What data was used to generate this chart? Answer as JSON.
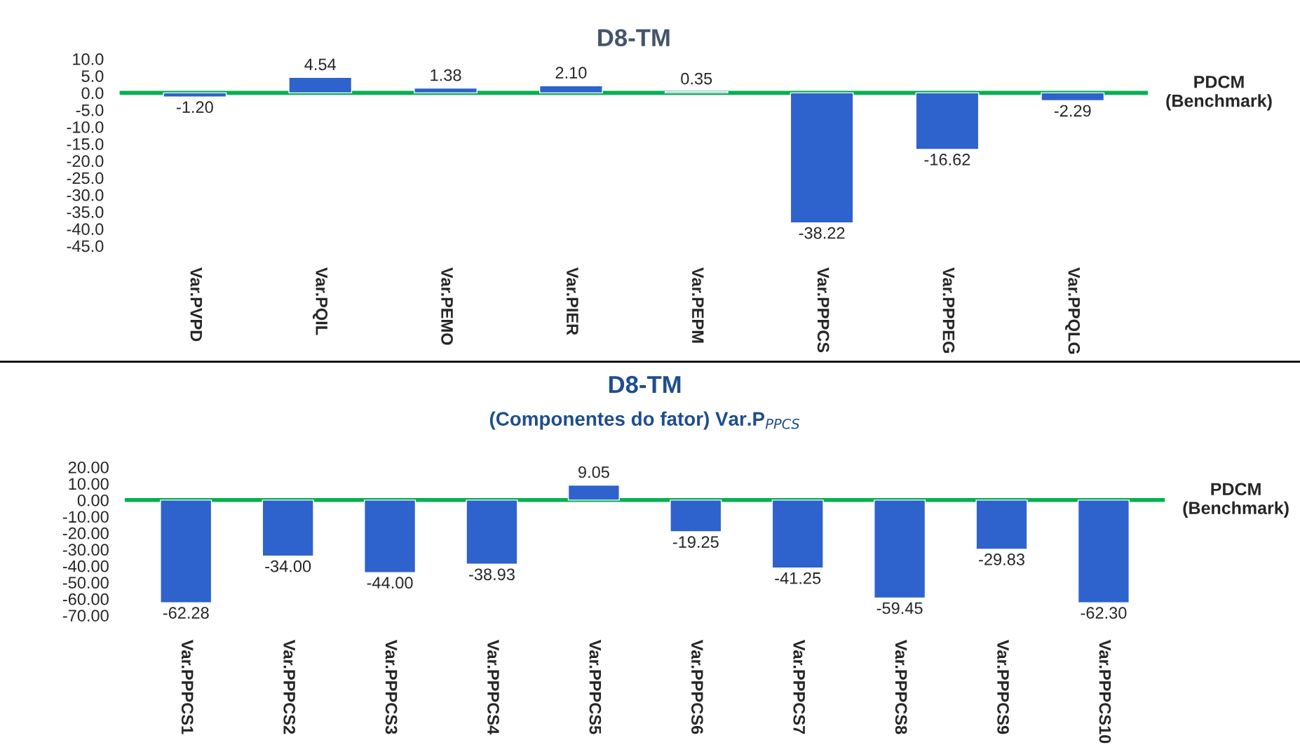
{
  "chart_data": [
    {
      "type": "bar",
      "title": "D8-TM",
      "categories": [
        "Var.PVPD",
        "Var.PQIL",
        "Var.PEMO",
        "Var.PIER",
        "Var.PEPM",
        "Var.PPPCS",
        "Var.PPPEG",
        "Var.PPQLG"
      ],
      "values": [
        -1.2,
        4.54,
        1.38,
        2.1,
        0.35,
        -38.22,
        -16.62,
        -2.29
      ],
      "value_labels": [
        "-1.20",
        "4.54",
        "1.38",
        "2.10",
        "0.35",
        "-38.22",
        "-16.62",
        "-2.29"
      ],
      "color": "#2e62cc",
      "ylim": [
        -45,
        10
      ],
      "yticks": [
        {
          "value": 10,
          "label": "10.0"
        },
        {
          "value": 5,
          "label": "5.0"
        },
        {
          "value": 0,
          "label": "0.0"
        },
        {
          "value": -5,
          "label": "-5.0"
        },
        {
          "value": -10,
          "label": "-10.0"
        },
        {
          "value": -15,
          "label": "-15.0"
        },
        {
          "value": -20,
          "label": "-20.0"
        },
        {
          "value": -25,
          "label": "-25.0"
        },
        {
          "value": -30,
          "label": "-30.0"
        },
        {
          "value": -35,
          "label": "-35.0"
        },
        {
          "value": -40,
          "label": "-40.0"
        },
        {
          "value": -45,
          "label": "-45.0"
        }
      ],
      "ref_lines": [
        {
          "axis": "y",
          "value": 0,
          "label": "PDCM\n(Benchmark)",
          "color": "#00b050"
        }
      ],
      "grid": false,
      "legend": false
    },
    {
      "type": "bar",
      "title": "D8-TM",
      "subtitle": "(Componentes do fator) Var.P$_{PPCS}$",
      "categories": [
        "Var.PPPCS1",
        "Var.PPPCS2",
        "Var.PPPCS3",
        "Var.PPPCS4",
        "Var.PPPCS5",
        "Var.PPPCS6",
        "Var.PPPCS7",
        "Var.PPPCS8",
        "Var.PPPCS9",
        "Var.PPPCS10"
      ],
      "values": [
        -62.28,
        -34.0,
        -44.0,
        -38.93,
        9.05,
        -19.25,
        -41.25,
        -59.45,
        -29.83,
        -62.3
      ],
      "value_labels": [
        "-62.28",
        "-34.00",
        "-44.00",
        "-38.93",
        "9.05",
        "-19.25",
        "-41.25",
        "-59.45",
        "-29.83",
        "-62.30"
      ],
      "color": "#2e62cc",
      "ylim": [
        -70,
        20
      ],
      "yticks": [
        {
          "value": 20,
          "label": "20.00"
        },
        {
          "value": 10,
          "label": "10.00"
        },
        {
          "value": 0,
          "label": "0.00"
        },
        {
          "value": -10,
          "label": "-10.00"
        },
        {
          "value": -20,
          "label": "-20.00"
        },
        {
          "value": -30,
          "label": "-30.00"
        },
        {
          "value": -40,
          "label": "-40.00"
        },
        {
          "value": -50,
          "label": "-50.00"
        },
        {
          "value": -60,
          "label": "-60.00"
        },
        {
          "value": -70,
          "label": "-70.00"
        }
      ],
      "ref_lines": [
        {
          "axis": "y",
          "value": 0,
          "label": "PDCM\n(Benchmark)",
          "color": "#00b050"
        }
      ],
      "grid": false,
      "legend": false
    }
  ]
}
